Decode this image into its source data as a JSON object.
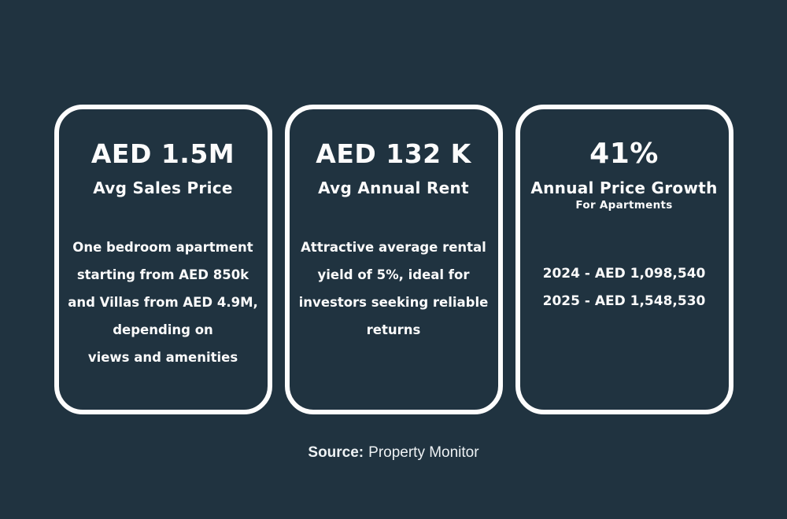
{
  "page": {
    "background_color": "#203340",
    "card_border_color": "#fdfdfd",
    "text_color": "#ffffff"
  },
  "cards": [
    {
      "headline": "AED 1.5M",
      "subtitle": "Avg Sales Price",
      "body_lines": [
        "One bedroom apartment",
        "starting from AED 850k",
        "and Villas from AED 4.9M,",
        "depending on",
        "views and amenities"
      ]
    },
    {
      "headline": "AED 132 K",
      "subtitle": "Avg Annual Rent",
      "body_lines": [
        "Attractive average rental",
        "yield of 5%, ideal for",
        "investors seeking reliable",
        "returns"
      ]
    },
    {
      "headline": "41%",
      "subtitle": "Annual Price Growth",
      "subtitle2": "For Apartments",
      "body_lines": [
        "2024 - AED 1,098,540",
        "2025 - AED 1,548,530"
      ]
    }
  ],
  "footer": {
    "source_label": "Source:",
    "source_value": "Property Monitor"
  }
}
